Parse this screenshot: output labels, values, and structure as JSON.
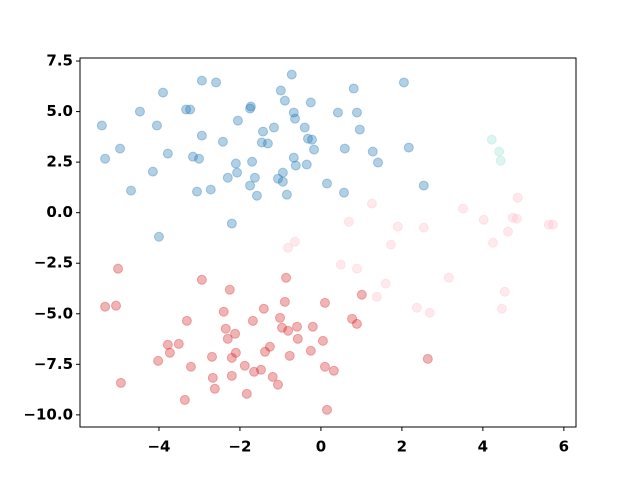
{
  "chart_data": {
    "type": "scatter",
    "xlim": [
      -5.95,
      6.3
    ],
    "ylim": [
      -10.6,
      7.65
    ],
    "xticks": [
      {
        "value": -4,
        "label": "−4"
      },
      {
        "value": -2,
        "label": "−2"
      },
      0,
      2,
      4,
      6
    ],
    "yticks": [
      7.5,
      {
        "value": 5,
        "label": "5.0"
      },
      2.5,
      {
        "value": 0,
        "label": "0.0"
      },
      {
        "value": -2.5,
        "label": "−2.5"
      },
      {
        "value": -5,
        "label": "−5.0"
      },
      {
        "value": -7.5,
        "label": "−7.5"
      },
      {
        "value": -10,
        "label": "−10.0"
      }
    ],
    "alpha": 0.35,
    "series": [
      {
        "color": "#1f77b4",
        "x": [
          -5.41,
          -5.33,
          -4.96,
          -4.69,
          -4.47,
          -4.15,
          -4.05,
          -3.9,
          -3.78,
          -4.0,
          -3.33,
          -3.23,
          -3.16,
          -3.01,
          -2.94,
          -3.06,
          -2.94,
          -2.72,
          -2.59,
          -2.42,
          -2.3,
          -2.2,
          -2.1,
          -2.05,
          -2.07,
          -1.75,
          -1.75,
          -1.73,
          -1.7,
          -1.63,
          -1.58,
          -1.46,
          -1.43,
          -1.31,
          -1.16,
          -1.06,
          -0.99,
          -0.94,
          -0.94,
          -0.89,
          -0.84,
          -0.72,
          -0.67,
          -0.67,
          -0.64,
          -0.62,
          -0.4,
          -0.35,
          -0.32,
          -0.25,
          -0.22,
          -0.17,
          0.15,
          0.42,
          0.57,
          0.59,
          0.81,
          0.89,
          0.96,
          1.28,
          1.41,
          2.05,
          2.17,
          2.54
        ],
        "values": [
          4.31,
          2.67,
          3.17,
          1.09,
          5.0,
          2.03,
          4.31,
          5.94,
          2.92,
          -1.19,
          5.1,
          5.1,
          2.77,
          2.67,
          3.81,
          1.04,
          6.53,
          1.14,
          6.44,
          3.51,
          1.73,
          -0.54,
          2.43,
          4.55,
          1.98,
          1.34,
          5.15,
          5.25,
          2.52,
          1.73,
          0.84,
          3.47,
          4.01,
          3.42,
          4.21,
          1.68,
          6.04,
          1.98,
          1.53,
          5.54,
          0.89,
          6.83,
          2.72,
          4.95,
          4.65,
          2.33,
          4.21,
          2.38,
          3.66,
          5.45,
          3.61,
          3.12,
          1.44,
          4.95,
          0.99,
          3.17,
          6.14,
          4.95,
          4.11,
          3.02,
          2.48,
          6.44,
          3.22,
          1.34
        ]
      },
      {
        "color": "#d62728",
        "x": [
          -5.01,
          -5.33,
          -5.06,
          -4.94,
          -4.02,
          -3.78,
          -3.73,
          -3.51,
          -3.31,
          -3.21,
          -3.36,
          -2.94,
          -2.69,
          -2.67,
          -2.62,
          -2.4,
          -2.35,
          -2.3,
          -2.25,
          -2.2,
          -2.2,
          -2.12,
          -2.1,
          -1.88,
          -1.83,
          -1.68,
          -1.65,
          -1.48,
          -1.41,
          -1.38,
          -1.26,
          -1.19,
          -1.06,
          -1.01,
          -0.96,
          -0.89,
          -0.86,
          -0.81,
          -0.77,
          -0.59,
          -0.57,
          -0.25,
          -0.2,
          0.05,
          0.1,
          0.1,
          0.15,
          0.32,
          0.77,
          0.89,
          1.01,
          2.64
        ],
        "values": [
          -2.77,
          -4.65,
          -4.6,
          -8.42,
          -7.33,
          -6.53,
          -6.93,
          -6.49,
          -5.35,
          -7.62,
          -9.26,
          -3.32,
          -7.13,
          -8.17,
          -8.71,
          -4.9,
          -5.74,
          -6.24,
          -3.81,
          -7.18,
          -8.07,
          -5.99,
          -6.93,
          -7.57,
          -8.96,
          -5.35,
          -7.87,
          -7.77,
          -4.75,
          -6.88,
          -6.63,
          -8.12,
          -8.51,
          -5.2,
          -5.69,
          -4.41,
          -3.22,
          -5.84,
          -7.08,
          -5.64,
          -6.24,
          -6.83,
          -5.64,
          -6.34,
          -4.46,
          -7.62,
          -9.75,
          -7.82,
          -5.25,
          -5.5,
          -4.06,
          -7.23
        ]
      },
      {
        "color": "#ffc0cb",
        "x": [
          -0.81,
          -0.64,
          0.69,
          0.49,
          0.89,
          1.26,
          1.38,
          1.6,
          1.73,
          1.9,
          2.37,
          2.54,
          2.69,
          3.16,
          3.51,
          4.02,
          4.25,
          4.47,
          4.54,
          4.62,
          4.74,
          4.84,
          4.86,
          5.63,
          5.73
        ],
        "values": [
          -1.73,
          -1.44,
          -0.45,
          -2.57,
          -2.77,
          0.45,
          -4.16,
          -3.51,
          -1.58,
          -0.69,
          -4.7,
          -0.74,
          -4.95,
          -3.22,
          0.2,
          -0.35,
          -1.49,
          -4.75,
          -3.91,
          -0.94,
          -0.25,
          -0.3,
          0.74,
          -0.59,
          -0.59
        ]
      },
      {
        "color": "#9fe3d6",
        "x": [
          4.22,
          4.4,
          4.44
        ],
        "values": [
          3.61,
          3.02,
          2.57
        ]
      }
    ]
  }
}
